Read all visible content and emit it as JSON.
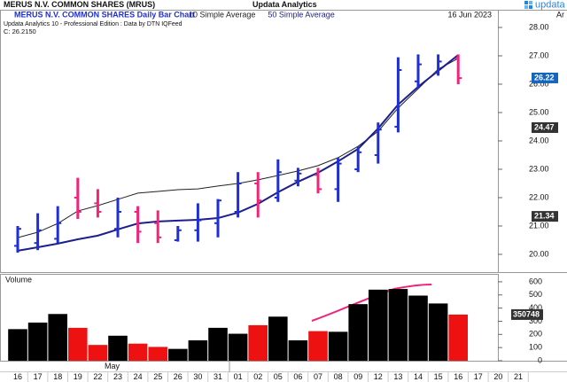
{
  "header": {
    "title": "MERUS N.V. COMMON SHARES (MRUS)",
    "center": "Updata Analytics",
    "logo": "updata"
  },
  "chart_data": {
    "type": "ohlc",
    "subtitle": "MERUS N.V. COMMON SHARES Daily Bar Chart",
    "source": "Updata Analytics 10 - Professional Edition : Data by DTN IQFeed",
    "last_close": "C: 26.2150",
    "date": "16 Jun 2023",
    "corner_label": "Ar",
    "categories": [
      "16",
      "17",
      "18",
      "19",
      "22",
      "23",
      "24",
      "25",
      "26",
      "30",
      "31",
      "01",
      "02",
      "05",
      "06",
      "07",
      "08",
      "09",
      "12",
      "13",
      "14",
      "15",
      "16",
      "17",
      "20",
      "21"
    ],
    "month_label": "May",
    "open": [
      20.3,
      20.4,
      20.55,
      22.0,
      21.8,
      20.9,
      21.5,
      21.1,
      20.5,
      20.85,
      21.1,
      21.5,
      22.5,
      22.0,
      22.6,
      22.8,
      22.3,
      23.0,
      23.5,
      24.5,
      26.1,
      26.4,
      26.9,
      null,
      null,
      null
    ],
    "high": [
      21.0,
      21.45,
      21.7,
      22.7,
      22.3,
      22.0,
      21.7,
      21.55,
      21.0,
      21.8,
      21.95,
      22.9,
      22.9,
      23.35,
      23.05,
      23.05,
      23.4,
      23.8,
      24.65,
      26.95,
      27.05,
      27.05,
      27.05,
      null,
      null,
      null
    ],
    "low": [
      20.06,
      20.15,
      20.4,
      21.25,
      21.3,
      20.6,
      20.4,
      20.4,
      20.45,
      20.45,
      20.6,
      21.3,
      21.3,
      21.85,
      22.4,
      22.15,
      21.85,
      22.9,
      23.2,
      24.3,
      25.85,
      26.3,
      26.0,
      null,
      null,
      null
    ],
    "close": [
      20.9,
      20.85,
      21.1,
      21.5,
      21.5,
      21.5,
      20.8,
      20.6,
      20.85,
      21.2,
      21.9,
      22.5,
      21.9,
      22.9,
      22.85,
      22.3,
      23.2,
      23.6,
      24.4,
      26.5,
      26.7,
      26.8,
      26.215,
      null,
      null,
      null
    ],
    "up_color": "#1f2fd6",
    "down_color": "#f0257a",
    "ylim": [
      19.375,
      28.625
    ],
    "yticks": [
      {
        "value": 20,
        "label": "20.00"
      },
      {
        "value": 21,
        "label": "21.00"
      },
      {
        "value": 22,
        "label": "22.00"
      },
      {
        "value": 23,
        "label": "23.00"
      },
      {
        "value": 24,
        "label": "24.00"
      },
      {
        "value": 25,
        "label": "25.00"
      },
      {
        "value": 26,
        "label": "26.00"
      },
      {
        "value": 27,
        "label": "27.00"
      },
      {
        "value": 28,
        "label": "28.00"
      }
    ],
    "series": [
      {
        "name": "10 Simple Average",
        "color": "#222222",
        "width": 1,
        "values": [
          20.59,
          20.78,
          21.09,
          21.53,
          21.72,
          21.94,
          22.16,
          22.22,
          22.28,
          22.31,
          22.41,
          22.5,
          22.63,
          22.78,
          22.94,
          23.13,
          23.41,
          23.81,
          24.34,
          25.16,
          25.84,
          26.53,
          26.91,
          null,
          null,
          null
        ]
      },
      {
        "name": "50 Simple Average",
        "color": "#1c1f8a",
        "width": 2,
        "values": [
          20.13,
          20.25,
          20.38,
          20.53,
          20.66,
          20.88,
          21.09,
          21.16,
          21.19,
          21.22,
          21.28,
          21.47,
          21.78,
          22.19,
          22.56,
          22.88,
          23.28,
          23.72,
          24.44,
          25.28,
          25.91,
          26.47,
          27.03,
          null,
          null,
          null
        ]
      }
    ],
    "markers": [
      {
        "value": 26.22,
        "color": "#1565c0"
      },
      {
        "value": 24.47,
        "color": "#333333"
      },
      {
        "value": 21.34,
        "color": "#333333"
      }
    ],
    "volume": {
      "title": "Volume",
      "values": [
        240,
        290,
        355,
        250,
        120,
        190,
        130,
        105,
        90,
        155,
        250,
        205,
        270,
        335,
        155,
        225,
        220,
        430,
        540,
        545,
        495,
        435,
        350.748,
        null,
        null,
        null
      ],
      "up_color": "#000000",
      "down_color": "#ee1111",
      "ylim": [
        0,
        660
      ],
      "yticks": [
        0,
        100,
        200,
        300,
        400,
        500,
        600
      ],
      "marker": {
        "value": 350.748,
        "label": "350748",
        "color": "#333333"
      }
    }
  }
}
